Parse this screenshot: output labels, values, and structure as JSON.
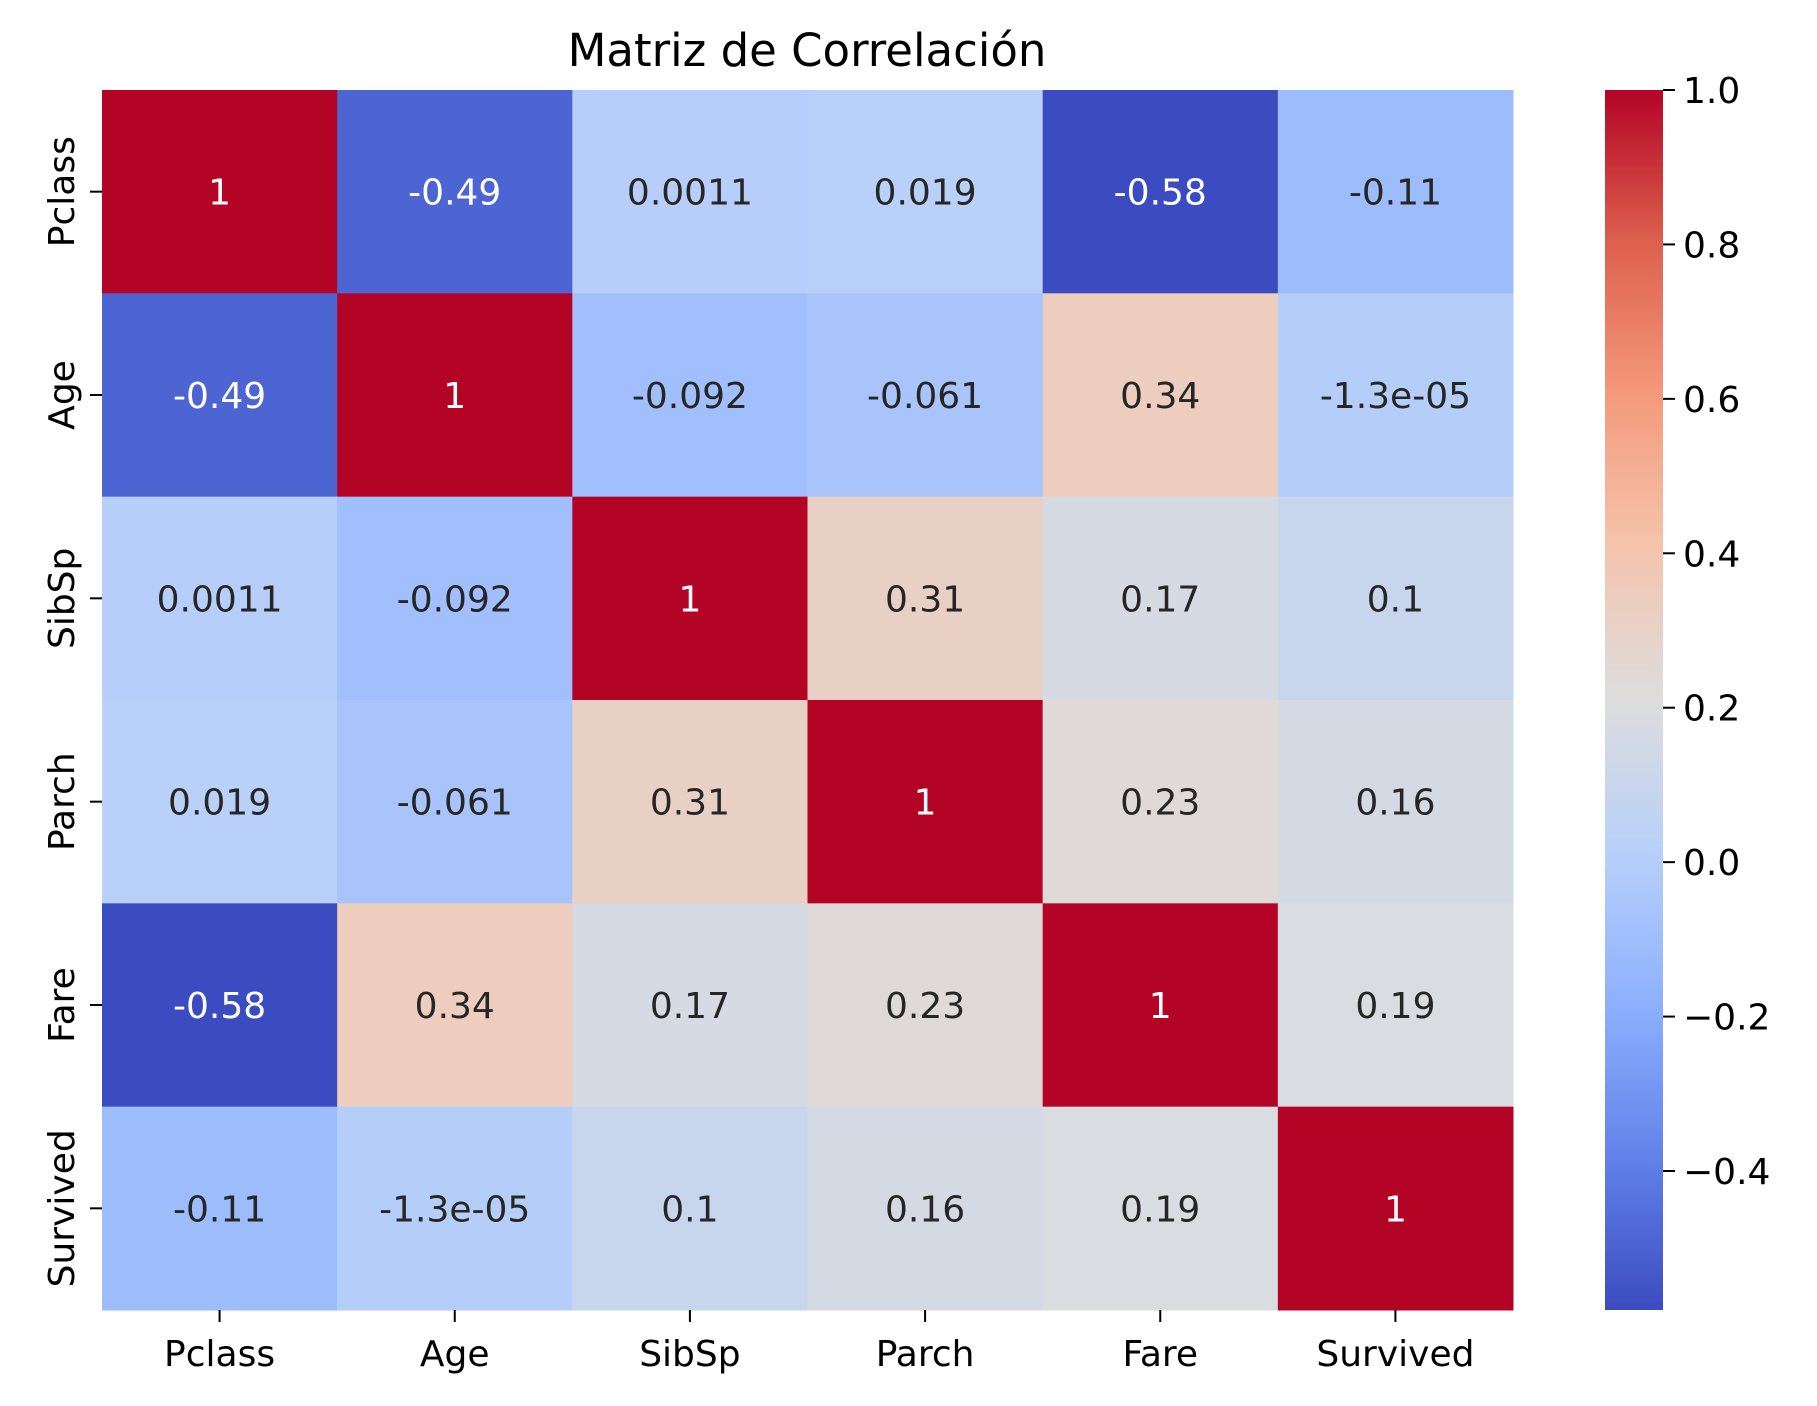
{
  "chart_data": {
    "type": "heatmap",
    "title": "Matriz de Correlación",
    "xlabel": "",
    "ylabel": "",
    "x_categories": [
      "Pclass",
      "Age",
      "SibSp",
      "Parch",
      "Fare",
      "Survived"
    ],
    "y_categories": [
      "Pclass",
      "Age",
      "SibSp",
      "Parch",
      "Fare",
      "Survived"
    ],
    "values": [
      [
        1,
        -0.49,
        0.0011,
        0.019,
        -0.58,
        -0.11
      ],
      [
        -0.49,
        1,
        -0.092,
        -0.061,
        0.34,
        -1.3e-05
      ],
      [
        0.0011,
        -0.092,
        1,
        0.31,
        0.17,
        0.1
      ],
      [
        0.019,
        -0.061,
        0.31,
        1,
        0.23,
        0.16
      ],
      [
        -0.58,
        0.34,
        0.17,
        0.23,
        1,
        0.19
      ],
      [
        -0.11,
        -1.3e-05,
        0.1,
        0.16,
        0.19,
        1
      ]
    ],
    "annotations": [
      [
        "1",
        "-0.49",
        "0.0011",
        "0.019",
        "-0.58",
        "-0.11"
      ],
      [
        "-0.49",
        "1",
        "-0.092",
        "-0.061",
        "0.34",
        "-1.3e-05"
      ],
      [
        "0.0011",
        "-0.092",
        "1",
        "0.31",
        "0.17",
        "0.1"
      ],
      [
        "0.019",
        "-0.061",
        "0.31",
        "1",
        "0.23",
        "0.16"
      ],
      [
        "-0.58",
        "0.34",
        "0.17",
        "0.23",
        "1",
        "0.19"
      ],
      [
        "-0.11",
        "-1.3e-05",
        "0.1",
        "0.16",
        "0.19",
        "1"
      ]
    ],
    "colormap": "coolwarm",
    "vmin": -0.58,
    "vmax": 1.0,
    "colorbar_ticks": [
      1.0,
      0.8,
      0.6,
      0.4,
      0.2,
      0.0,
      -0.2,
      -0.4
    ],
    "colorbar_tick_labels": [
      "1.0",
      "0.8",
      "0.6",
      "0.4",
      "0.2",
      "0.0",
      "−0.2",
      "−0.4"
    ],
    "grid": false,
    "legend": "colorbar-right"
  }
}
